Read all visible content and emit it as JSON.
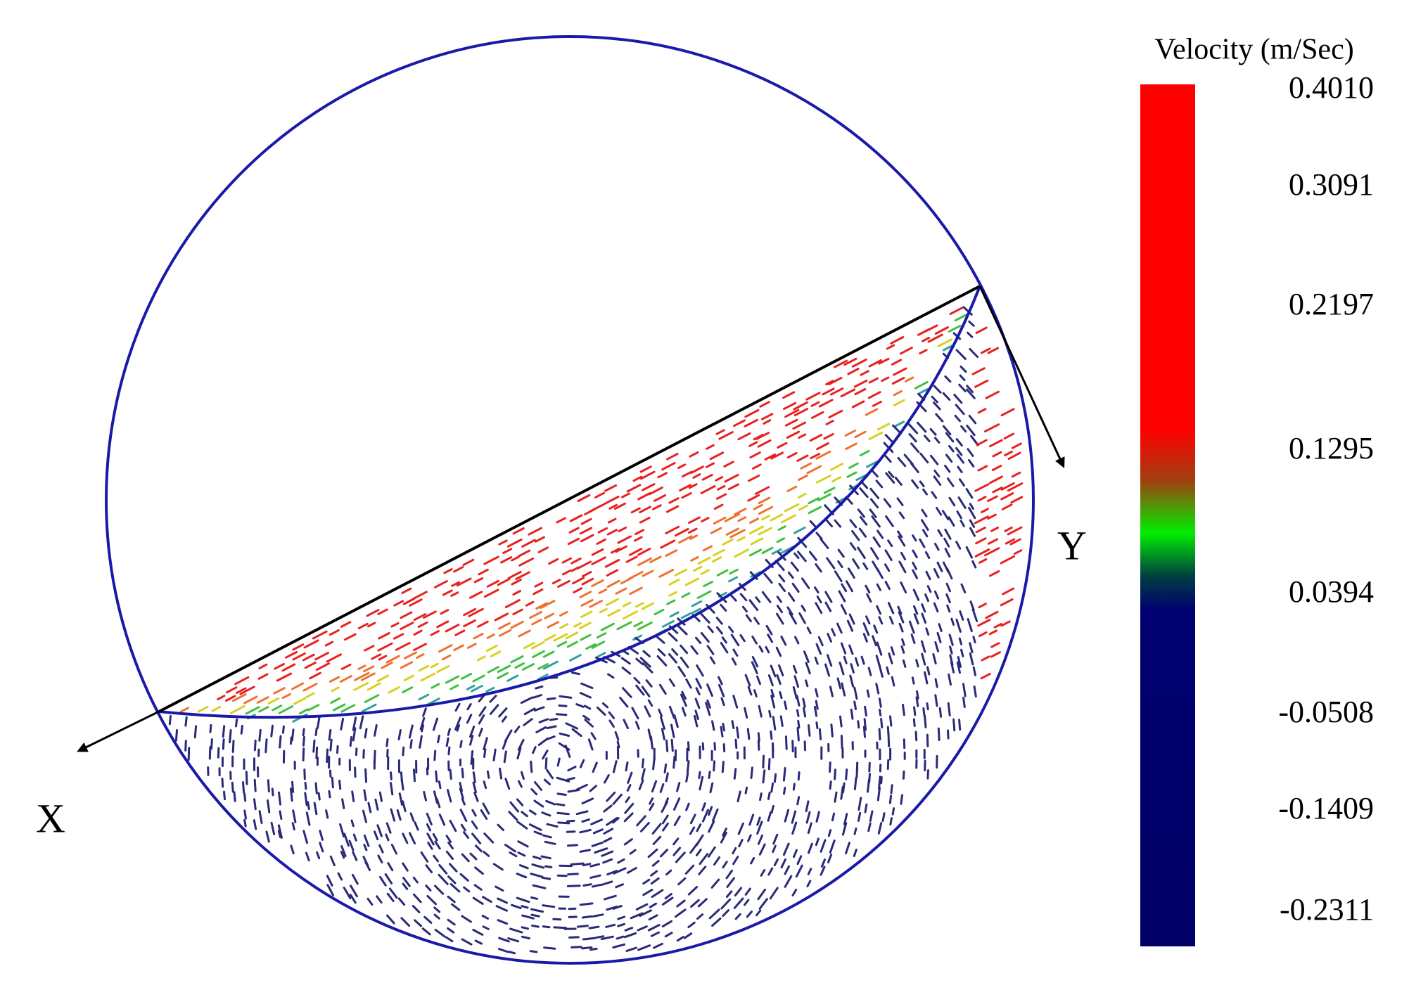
{
  "colorbar": {
    "title": "Velocity (m/Sec)",
    "ticks": [
      "0.4010",
      "0.3091",
      "0.2197",
      "0.1295",
      "0.0394",
      "-0.0508",
      "-0.1409",
      "-0.2311"
    ]
  },
  "axes": {
    "x_label": "X",
    "y_label": "Y"
  }
}
